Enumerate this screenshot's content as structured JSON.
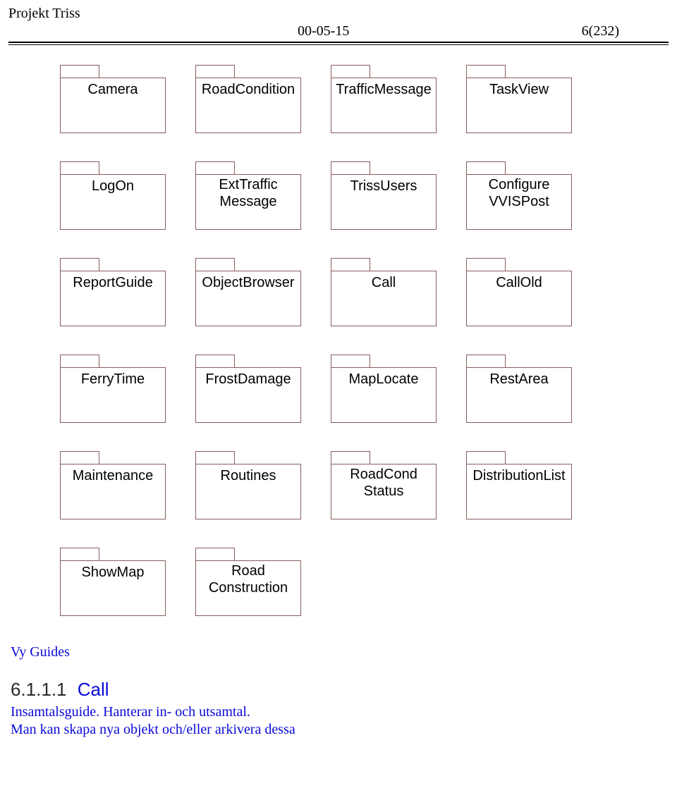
{
  "header": {
    "project_title": "Projekt Triss",
    "date": "00-05-15",
    "page": "6(232)"
  },
  "rows": [
    [
      "Camera",
      "RoadCondition",
      "TrafficMessage",
      "TaskView"
    ],
    [
      "LogOn",
      "ExtTraffic\nMessage",
      "TrissUsers",
      "Configure\nVVISPost"
    ],
    [
      "ReportGuide",
      "ObjectBrowser",
      "Call",
      "CallOld"
    ],
    [
      "FerryTime",
      "FrostDamage",
      "MapLocate",
      "RestArea"
    ],
    [
      "Maintenance",
      "Routines",
      "RoadCond\nStatus",
      "DistributionList"
    ],
    [
      "ShowMap",
      "Road\nConstruction"
    ]
  ],
  "sections": {
    "guides_label": "Vy Guides",
    "call_number": "6.1.1.1",
    "call_title": "Call",
    "call_line1": "Insamtalsguide. Hanterar in- och utsamtal.",
    "call_line2": "Man kan skapa nya objekt och/eller arkivera dessa"
  },
  "colors": {
    "folder_border": "#8a5c5c",
    "link_blue": "#0a0ad8",
    "text_black": "#000000",
    "background": "#ffffff"
  }
}
